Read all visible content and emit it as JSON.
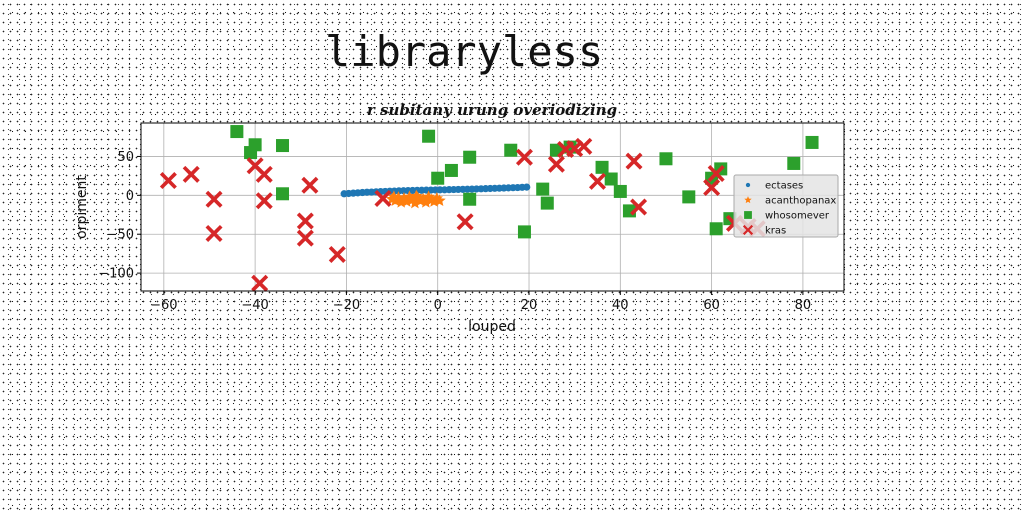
{
  "headline": "libraryless",
  "chart_data": {
    "type": "scatter",
    "title": "r subitany urung overiodizing",
    "xlabel": "louped",
    "ylabel": "orpiment",
    "xlim": [
      -65,
      89
    ],
    "ylim": [
      -123,
      93
    ],
    "xticks": [
      -60,
      -40,
      -20,
      0,
      20,
      40,
      60,
      80
    ],
    "yticks": [
      -100,
      -50,
      0,
      50
    ],
    "grid": true,
    "legend_position": "right",
    "series": [
      {
        "name": "ectases",
        "marker": "circle",
        "color": "#1f77b4",
        "points": [
          [
            -20.5,
            2
          ],
          [
            -19.5,
            2.4
          ],
          [
            -18.5,
            2.8
          ],
          [
            -17.5,
            3.2
          ],
          [
            -16.5,
            3.6
          ],
          [
            -15.5,
            4
          ],
          [
            -14.5,
            4.2
          ],
          [
            -13.5,
            4.5
          ],
          [
            -12.5,
            4.8
          ],
          [
            -11.5,
            5
          ],
          [
            -10.5,
            5.3
          ],
          [
            -9.5,
            5.5
          ],
          [
            -8.5,
            5.7
          ],
          [
            -7.5,
            5.9
          ],
          [
            -6.5,
            6.1
          ],
          [
            -5.5,
            6.2
          ],
          [
            -4.5,
            6.4
          ],
          [
            -3.5,
            6.5
          ],
          [
            -2.5,
            6.7
          ],
          [
            -1.5,
            6.8
          ],
          [
            -0.5,
            6.9
          ],
          [
            0.5,
            7
          ],
          [
            1.5,
            7.1
          ],
          [
            2.5,
            7.3
          ],
          [
            3.5,
            7.4
          ],
          [
            4.5,
            7.6
          ],
          [
            5.5,
            7.7
          ],
          [
            6.5,
            7.9
          ],
          [
            7.5,
            8
          ],
          [
            8.5,
            8.2
          ],
          [
            9.5,
            8.4
          ],
          [
            10.5,
            8.6
          ],
          [
            11.5,
            8.8
          ],
          [
            12.5,
            9
          ],
          [
            13.5,
            9.2
          ],
          [
            14.5,
            9.4
          ],
          [
            15.5,
            9.6
          ],
          [
            16.5,
            9.8
          ],
          [
            17.5,
            10
          ],
          [
            18.5,
            10.3
          ],
          [
            19.5,
            10.6
          ]
        ]
      },
      {
        "name": "acanthopanax",
        "marker": "star",
        "color": "#ff7f0e",
        "points": [
          [
            -10,
            -5
          ],
          [
            -9.3,
            -7
          ],
          [
            -8.6,
            -3
          ],
          [
            -8,
            -9
          ],
          [
            -7.4,
            -4
          ],
          [
            -6.8,
            -8
          ],
          [
            -6.2,
            -2
          ],
          [
            -5.6,
            -6
          ],
          [
            -5,
            -10
          ],
          [
            -4.4,
            -3
          ],
          [
            -3.8,
            -7
          ],
          [
            -3.2,
            -5
          ],
          [
            -2.6,
            -9
          ],
          [
            -2,
            -2
          ],
          [
            -1.4,
            -6
          ],
          [
            -0.8,
            -8
          ],
          [
            -0.2,
            -4
          ],
          [
            0.4,
            -7
          ],
          [
            -9.6,
            -2
          ],
          [
            -4.7,
            -1
          ]
        ]
      },
      {
        "name": "whosomever",
        "marker": "square",
        "color": "#2ca02c",
        "points": [
          [
            -44,
            82
          ],
          [
            -41,
            55
          ],
          [
            -40,
            65
          ],
          [
            -34,
            64
          ],
          [
            -34,
            2
          ],
          [
            -2,
            76
          ],
          [
            0,
            22
          ],
          [
            3,
            32
          ],
          [
            7,
            49
          ],
          [
            7,
            -5
          ],
          [
            16,
            58
          ],
          [
            19,
            -47
          ],
          [
            23,
            8
          ],
          [
            24,
            -10
          ],
          [
            26,
            58
          ],
          [
            29,
            62
          ],
          [
            36,
            36
          ],
          [
            38,
            21
          ],
          [
            40,
            5
          ],
          [
            42,
            -20
          ],
          [
            50,
            47
          ],
          [
            55,
            -2
          ],
          [
            60,
            22
          ],
          [
            61,
            -43
          ],
          [
            62,
            34
          ],
          [
            64,
            -30
          ],
          [
            78,
            41
          ],
          [
            82,
            68
          ]
        ]
      },
      {
        "name": "kras",
        "marker": "x",
        "color": "#d62728",
        "points": [
          [
            -59,
            19
          ],
          [
            -54,
            27
          ],
          [
            -49,
            -5
          ],
          [
            -49,
            -49
          ],
          [
            -40,
            38
          ],
          [
            -39,
            -113
          ],
          [
            -38,
            27
          ],
          [
            -38,
            -7
          ],
          [
            -28,
            13
          ],
          [
            -29,
            -33
          ],
          [
            -29,
            -55
          ],
          [
            -22,
            -76
          ],
          [
            -12,
            -4
          ],
          [
            6,
            -34
          ],
          [
            19,
            49
          ],
          [
            26,
            40
          ],
          [
            28,
            59
          ],
          [
            30,
            60
          ],
          [
            32,
            63
          ],
          [
            35,
            18
          ],
          [
            43,
            44
          ],
          [
            44,
            -15
          ],
          [
            60,
            10
          ],
          [
            61,
            28
          ],
          [
            65,
            -36
          ],
          [
            68,
            -40
          ],
          [
            70,
            -43
          ]
        ]
      }
    ]
  }
}
